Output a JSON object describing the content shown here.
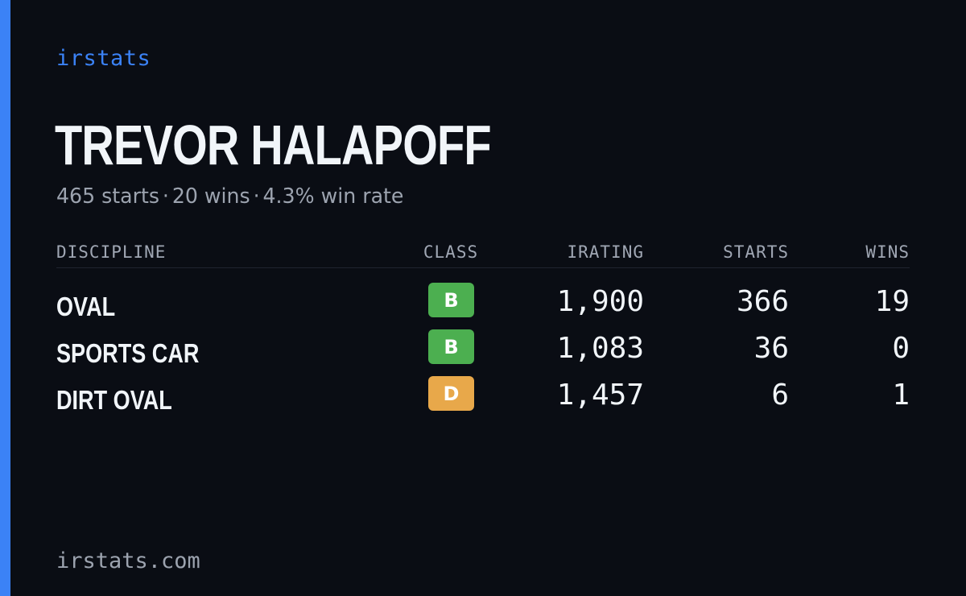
{
  "brand": "irstats",
  "player": {
    "name": "TREVOR HALAPOFF",
    "summary": {
      "starts": "465 starts",
      "wins": "20 wins",
      "win_rate": "4.3% win rate",
      "separator": "·"
    }
  },
  "table": {
    "headers": {
      "discipline": "DISCIPLINE",
      "class": "CLASS",
      "irating": "IRATING",
      "starts": "STARTS",
      "wins": "WINS"
    },
    "rows": [
      {
        "discipline": "OVAL",
        "class": "B",
        "class_color": "#4caf50",
        "irating": "1,900",
        "starts": "366",
        "wins": "19"
      },
      {
        "discipline": "SPORTS CAR",
        "class": "B",
        "class_color": "#4caf50",
        "irating": "1,083",
        "starts": "36",
        "wins": "0"
      },
      {
        "discipline": "DIRT OVAL",
        "class": "D",
        "class_color": "#e8a84a",
        "irating": "1,457",
        "starts": "6",
        "wins": "1"
      }
    ]
  },
  "footer": {
    "domain": "irstats.com"
  },
  "colors": {
    "background": "#0a0d14",
    "accent": "#3b82f6",
    "text_primary": "#f1f5f9",
    "text_muted": "#9ca3af"
  }
}
